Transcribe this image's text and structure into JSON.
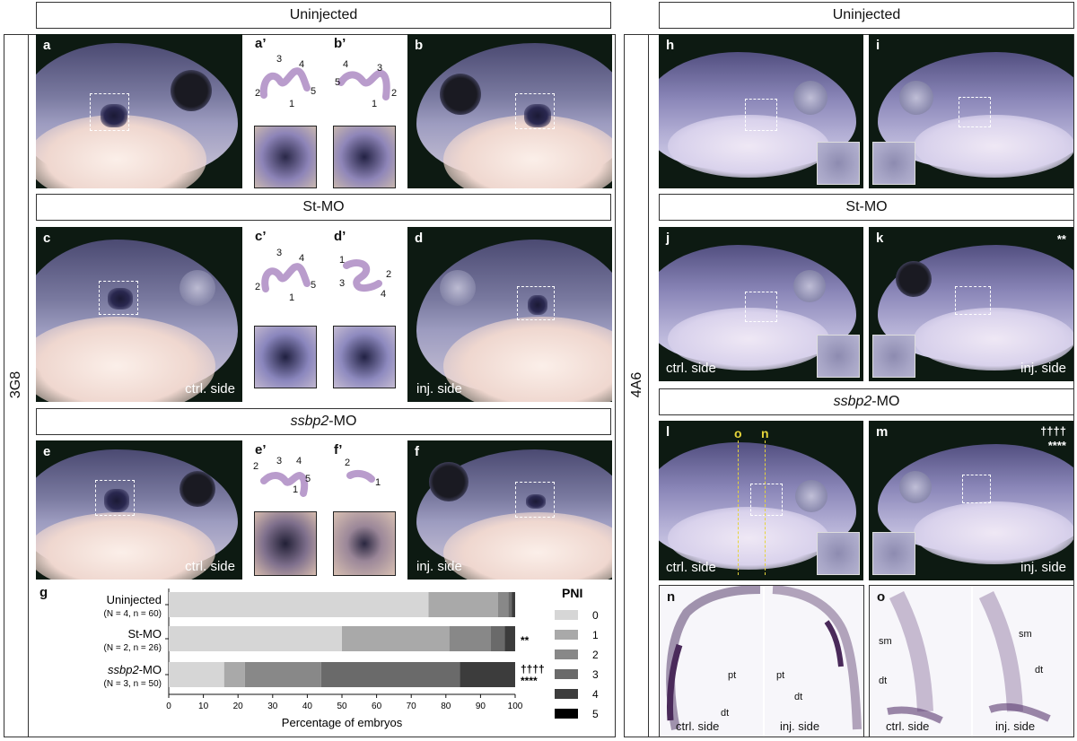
{
  "left": {
    "side_label": "3G8",
    "headers": [
      "Uninjected",
      "St-MO",
      "ssbp2-MO"
    ],
    "headers_italic_part": [
      "",
      "",
      "ssbp2"
    ],
    "panel_letters": [
      "a",
      "a’",
      "b’",
      "b",
      "c",
      "c’",
      "d’",
      "d",
      "e",
      "e’",
      "f’",
      "f",
      "g"
    ],
    "captions": {
      "ctrl": "ctrl. side",
      "inj": "inj. side"
    },
    "schematic_numbers": {
      "a_prime": [
        "3",
        "4",
        "2",
        "5",
        "1"
      ],
      "b_prime": [
        "4",
        "3",
        "5",
        "2",
        "1"
      ],
      "c_prime": [
        "3",
        "4",
        "2",
        "5",
        "1"
      ],
      "d_prime": [
        "1",
        "2",
        "3",
        "4"
      ],
      "e_prime": [
        "3",
        "4",
        "2",
        "5",
        "1"
      ],
      "f_prime": [
        "2",
        "1"
      ]
    }
  },
  "right": {
    "side_label": "4A6",
    "headers": [
      "Uninjected",
      "St-MO",
      "ssbp2-MO"
    ],
    "panel_letters": [
      "h",
      "i",
      "j",
      "k",
      "l",
      "m",
      "n",
      "o"
    ],
    "captions": {
      "ctrl": "ctrl. side",
      "inj": "inj. side"
    },
    "sig_k": "**",
    "sig_m_1": "††††",
    "sig_m_2": "****",
    "guide_o": "o",
    "guide_n": "n",
    "section_n_labels": [
      "pt",
      "dt",
      "pt",
      "dt"
    ],
    "section_o_labels": [
      "sm",
      "dt",
      "sm",
      "dt"
    ]
  },
  "chart_data": {
    "type": "bar",
    "orientation": "horizontal-stacked",
    "categories": [
      "Uninjected",
      "St-MO",
      "ssbp2-MO"
    ],
    "category_sub": [
      "(N = 4, n = 60)",
      "(N = 2, n = 26)",
      "(N = 3, n = 50)"
    ],
    "significance": [
      "",
      "**",
      "††††\n****"
    ],
    "legend_title": "PNI",
    "series": [
      {
        "name": "0",
        "color": "#d6d6d6",
        "values": [
          75,
          50,
          16
        ]
      },
      {
        "name": "1",
        "color": "#a9a9a9",
        "values": [
          20,
          31,
          6
        ]
      },
      {
        "name": "2",
        "color": "#888888",
        "values": [
          3,
          12,
          22
        ]
      },
      {
        "name": "3",
        "color": "#6a6a6a",
        "values": [
          1,
          4,
          40
        ]
      },
      {
        "name": "4",
        "color": "#3c3c3c",
        "values": [
          1,
          3,
          16
        ]
      },
      {
        "name": "5",
        "color": "#000000",
        "values": [
          0,
          0,
          0
        ]
      }
    ],
    "xlabel": "Percentage of embryos",
    "xlim": [
      0,
      100
    ],
    "xticks": [
      0,
      10,
      20,
      30,
      40,
      50,
      60,
      70,
      80,
      90,
      100
    ]
  }
}
